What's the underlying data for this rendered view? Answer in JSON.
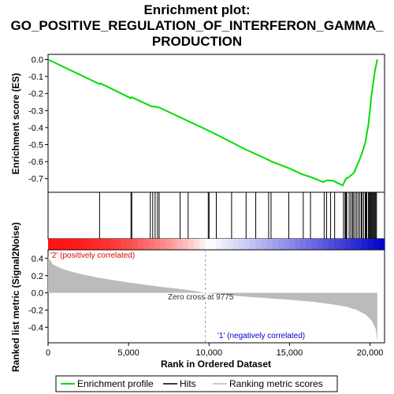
{
  "chart_data": {
    "type": "line",
    "title_lines": [
      "Enrichment plot:",
      "GO_POSITIVE_REGULATION_OF_INTERFERON_GAMMA_",
      "PRODUCTION"
    ],
    "es_panel": {
      "ylabel": "Enrichment score (ES)",
      "ylim": [
        -0.78,
        0.03
      ],
      "yticks": [
        "0.0",
        "-0.1",
        "-0.2",
        "-0.3",
        "-0.4",
        "-0.5",
        "-0.6",
        "-0.7"
      ],
      "ytick_values": [
        0.0,
        -0.1,
        -0.2,
        -0.3,
        -0.4,
        -0.5,
        -0.6,
        -0.7
      ],
      "series_color": "#00dd00",
      "points": [
        [
          0,
          0.0
        ],
        [
          3200,
          -0.145
        ],
        [
          3250,
          -0.14
        ],
        [
          5150,
          -0.228
        ],
        [
          5200,
          -0.222
        ],
        [
          6300,
          -0.27
        ],
        [
          6400,
          -0.275
        ],
        [
          6700,
          -0.278
        ],
        [
          6900,
          -0.282
        ],
        [
          9900,
          -0.415
        ],
        [
          10400,
          -0.438
        ],
        [
          12300,
          -0.53
        ],
        [
          13700,
          -0.59
        ],
        [
          13850,
          -0.598
        ],
        [
          15000,
          -0.64
        ],
        [
          15800,
          -0.675
        ],
        [
          16300,
          -0.69
        ],
        [
          17100,
          -0.72
        ],
        [
          17300,
          -0.71
        ],
        [
          17700,
          -0.712
        ],
        [
          18300,
          -0.74
        ],
        [
          18500,
          -0.7
        ],
        [
          18700,
          -0.69
        ],
        [
          19000,
          -0.665
        ],
        [
          19300,
          -0.6
        ],
        [
          19500,
          -0.55
        ],
        [
          19700,
          -0.49
        ],
        [
          19900,
          -0.38
        ],
        [
          20100,
          -0.2
        ],
        [
          20300,
          -0.07
        ],
        [
          20450,
          0.0
        ]
      ]
    },
    "hits": {
      "positions": [
        3200,
        5150,
        5200,
        6350,
        6500,
        6650,
        6800,
        6900,
        8200,
        8700,
        9950,
        10000,
        10450,
        11400,
        12300,
        12900,
        13700,
        13850,
        14950,
        15850,
        16300,
        17150,
        17300,
        17550,
        17800,
        18350,
        18450,
        18500,
        18550,
        18700,
        18800,
        18900,
        18950,
        19050,
        19150,
        19250,
        19350,
        19450,
        19500,
        19600,
        19700,
        19750,
        19800,
        19900,
        19950,
        20000,
        20050,
        20100,
        20150,
        20200,
        20250,
        20300,
        20350,
        20400
      ]
    },
    "ranked_metric": {
      "ylabel": "Ranked list metric (Signal2Noise)",
      "ylim": [
        -0.58,
        0.5
      ],
      "yticks": [
        "0.4",
        "0.2",
        "0.0",
        "-0.2",
        "-0.4"
      ],
      "ytick_values": [
        0.4,
        0.2,
        0.0,
        -0.2,
        -0.4
      ],
      "curve": [
        [
          0,
          0.42
        ],
        [
          300,
          0.33
        ],
        [
          1000,
          0.27
        ],
        [
          2000,
          0.22
        ],
        [
          3000,
          0.18
        ],
        [
          4000,
          0.15
        ],
        [
          5000,
          0.12
        ],
        [
          6000,
          0.095
        ],
        [
          7000,
          0.07
        ],
        [
          8000,
          0.05
        ],
        [
          9000,
          0.025
        ],
        [
          9775,
          0.0
        ],
        [
          10500,
          -0.015
        ],
        [
          12000,
          -0.04
        ],
        [
          13500,
          -0.06
        ],
        [
          15000,
          -0.08
        ],
        [
          16500,
          -0.105
        ],
        [
          17500,
          -0.13
        ],
        [
          18500,
          -0.16
        ],
        [
          19200,
          -0.2
        ],
        [
          19700,
          -0.25
        ],
        [
          20100,
          -0.32
        ],
        [
          20350,
          -0.42
        ],
        [
          20450,
          -0.56
        ]
      ],
      "zero_cross_label": "Zero cross at 9775",
      "zero_cross": 9775,
      "pos_label": "'2' (positively correlated)",
      "neg_label": "'1' (negatively correlated)",
      "pos_color": "#ff0000",
      "neg_color": "#0000cc"
    },
    "xlabel": "Rank in Ordered Dataset",
    "xlim": [
      0,
      20900
    ],
    "xticks": [
      "0",
      "5,000",
      "10,000",
      "15,000",
      "20,000"
    ],
    "xtick_values": [
      0,
      5000,
      10000,
      15000,
      20000
    ],
    "legend": [
      {
        "label": "Enrichment profile",
        "color": "#00dd00"
      },
      {
        "label": "Hits",
        "color": "#000000"
      },
      {
        "label": "Ranking metric scores",
        "color": "#bbbbbb"
      }
    ]
  }
}
